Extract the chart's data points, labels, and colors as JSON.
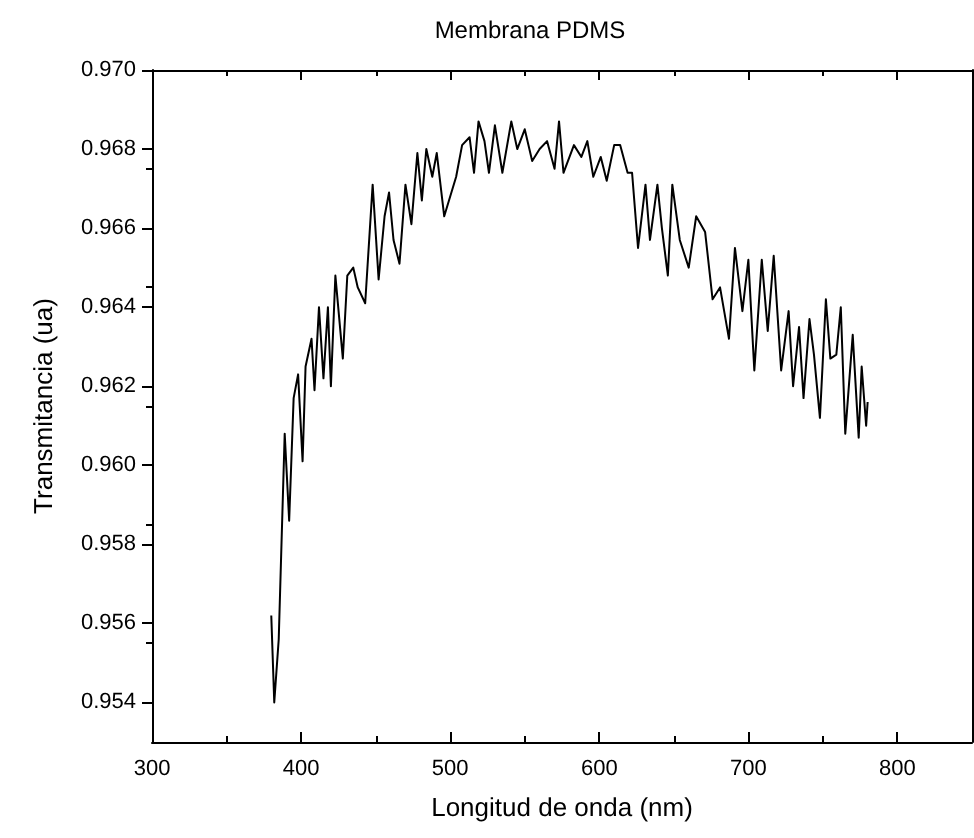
{
  "chart_data": {
    "type": "line",
    "title": "Membrana PDMS",
    "xlabel": "Longitud de onda (nm)",
    "ylabel": "Transmitancia (ua)",
    "xlim": [
      300,
      850
    ],
    "xticks": [
      300,
      400,
      500,
      600,
      700,
      800
    ],
    "ylim": [
      0.953,
      0.97
    ],
    "yticks": [
      {
        "value": 0.954,
        "label": "0.954"
      },
      {
        "value": 0.956,
        "label": "0.956"
      },
      {
        "value": 0.958,
        "label": "0.958"
      },
      {
        "value": 0.96,
        "label": "0.960"
      },
      {
        "value": 0.962,
        "label": "0.962"
      },
      {
        "value": 0.964,
        "label": "0.964"
      },
      {
        "value": 0.966,
        "label": "0.966"
      },
      {
        "value": 0.968,
        "label": "0.968"
      },
      {
        "value": 0.97,
        "label": "0.970"
      }
    ],
    "grid": false,
    "marker": "none",
    "line_style": "solid",
    "series": [
      {
        "color": "#000000",
        "x": [
          380,
          382,
          385,
          389,
          392,
          395,
          398,
          401,
          403,
          407,
          409,
          412,
          415,
          418,
          420,
          423,
          428,
          431,
          435,
          438,
          443,
          448,
          452,
          456,
          459,
          462,
          466,
          470,
          474,
          478,
          481,
          484,
          488,
          491,
          496,
          504,
          508,
          513,
          516,
          519,
          523,
          526,
          530,
          535,
          541,
          545,
          550,
          555,
          560,
          565,
          570,
          573,
          576,
          583,
          588,
          592,
          596,
          601,
          605,
          610,
          614,
          619,
          622,
          626,
          631,
          634,
          639,
          642,
          646,
          649,
          654,
          660,
          665,
          671,
          676,
          681,
          687,
          691,
          696,
          700,
          704,
          709,
          713,
          717,
          722,
          727,
          730,
          734,
          737,
          741,
          744,
          748,
          752,
          755,
          759,
          762,
          765,
          770,
          774,
          776,
          779,
          780
        ],
        "values": [
          0.9562,
          0.954,
          0.9556,
          0.9608,
          0.9586,
          0.9617,
          0.9623,
          0.9601,
          0.9625,
          0.9632,
          0.9619,
          0.964,
          0.9622,
          0.964,
          0.962,
          0.9648,
          0.9627,
          0.9648,
          0.965,
          0.9645,
          0.9641,
          0.9671,
          0.9647,
          0.9663,
          0.9669,
          0.9657,
          0.9651,
          0.9671,
          0.9661,
          0.9679,
          0.9667,
          0.968,
          0.9673,
          0.9679,
          0.9663,
          0.9673,
          0.9681,
          0.9683,
          0.9674,
          0.9687,
          0.9682,
          0.9674,
          0.9686,
          0.9674,
          0.9687,
          0.968,
          0.9685,
          0.9677,
          0.968,
          0.9682,
          0.9675,
          0.9687,
          0.9674,
          0.9681,
          0.9678,
          0.9682,
          0.9673,
          0.9678,
          0.9672,
          0.9681,
          0.9681,
          0.9674,
          0.9674,
          0.9655,
          0.9671,
          0.9657,
          0.9671,
          0.966,
          0.9648,
          0.9671,
          0.9657,
          0.965,
          0.9663,
          0.9659,
          0.9642,
          0.9645,
          0.9632,
          0.9655,
          0.9639,
          0.9652,
          0.9624,
          0.9652,
          0.9634,
          0.9653,
          0.9624,
          0.9639,
          0.962,
          0.9635,
          0.9617,
          0.9637,
          0.9628,
          0.9612,
          0.9642,
          0.9627,
          0.9628,
          0.964,
          0.9608,
          0.9633,
          0.9607,
          0.9625,
          0.961,
          0.9616
        ]
      }
    ]
  }
}
